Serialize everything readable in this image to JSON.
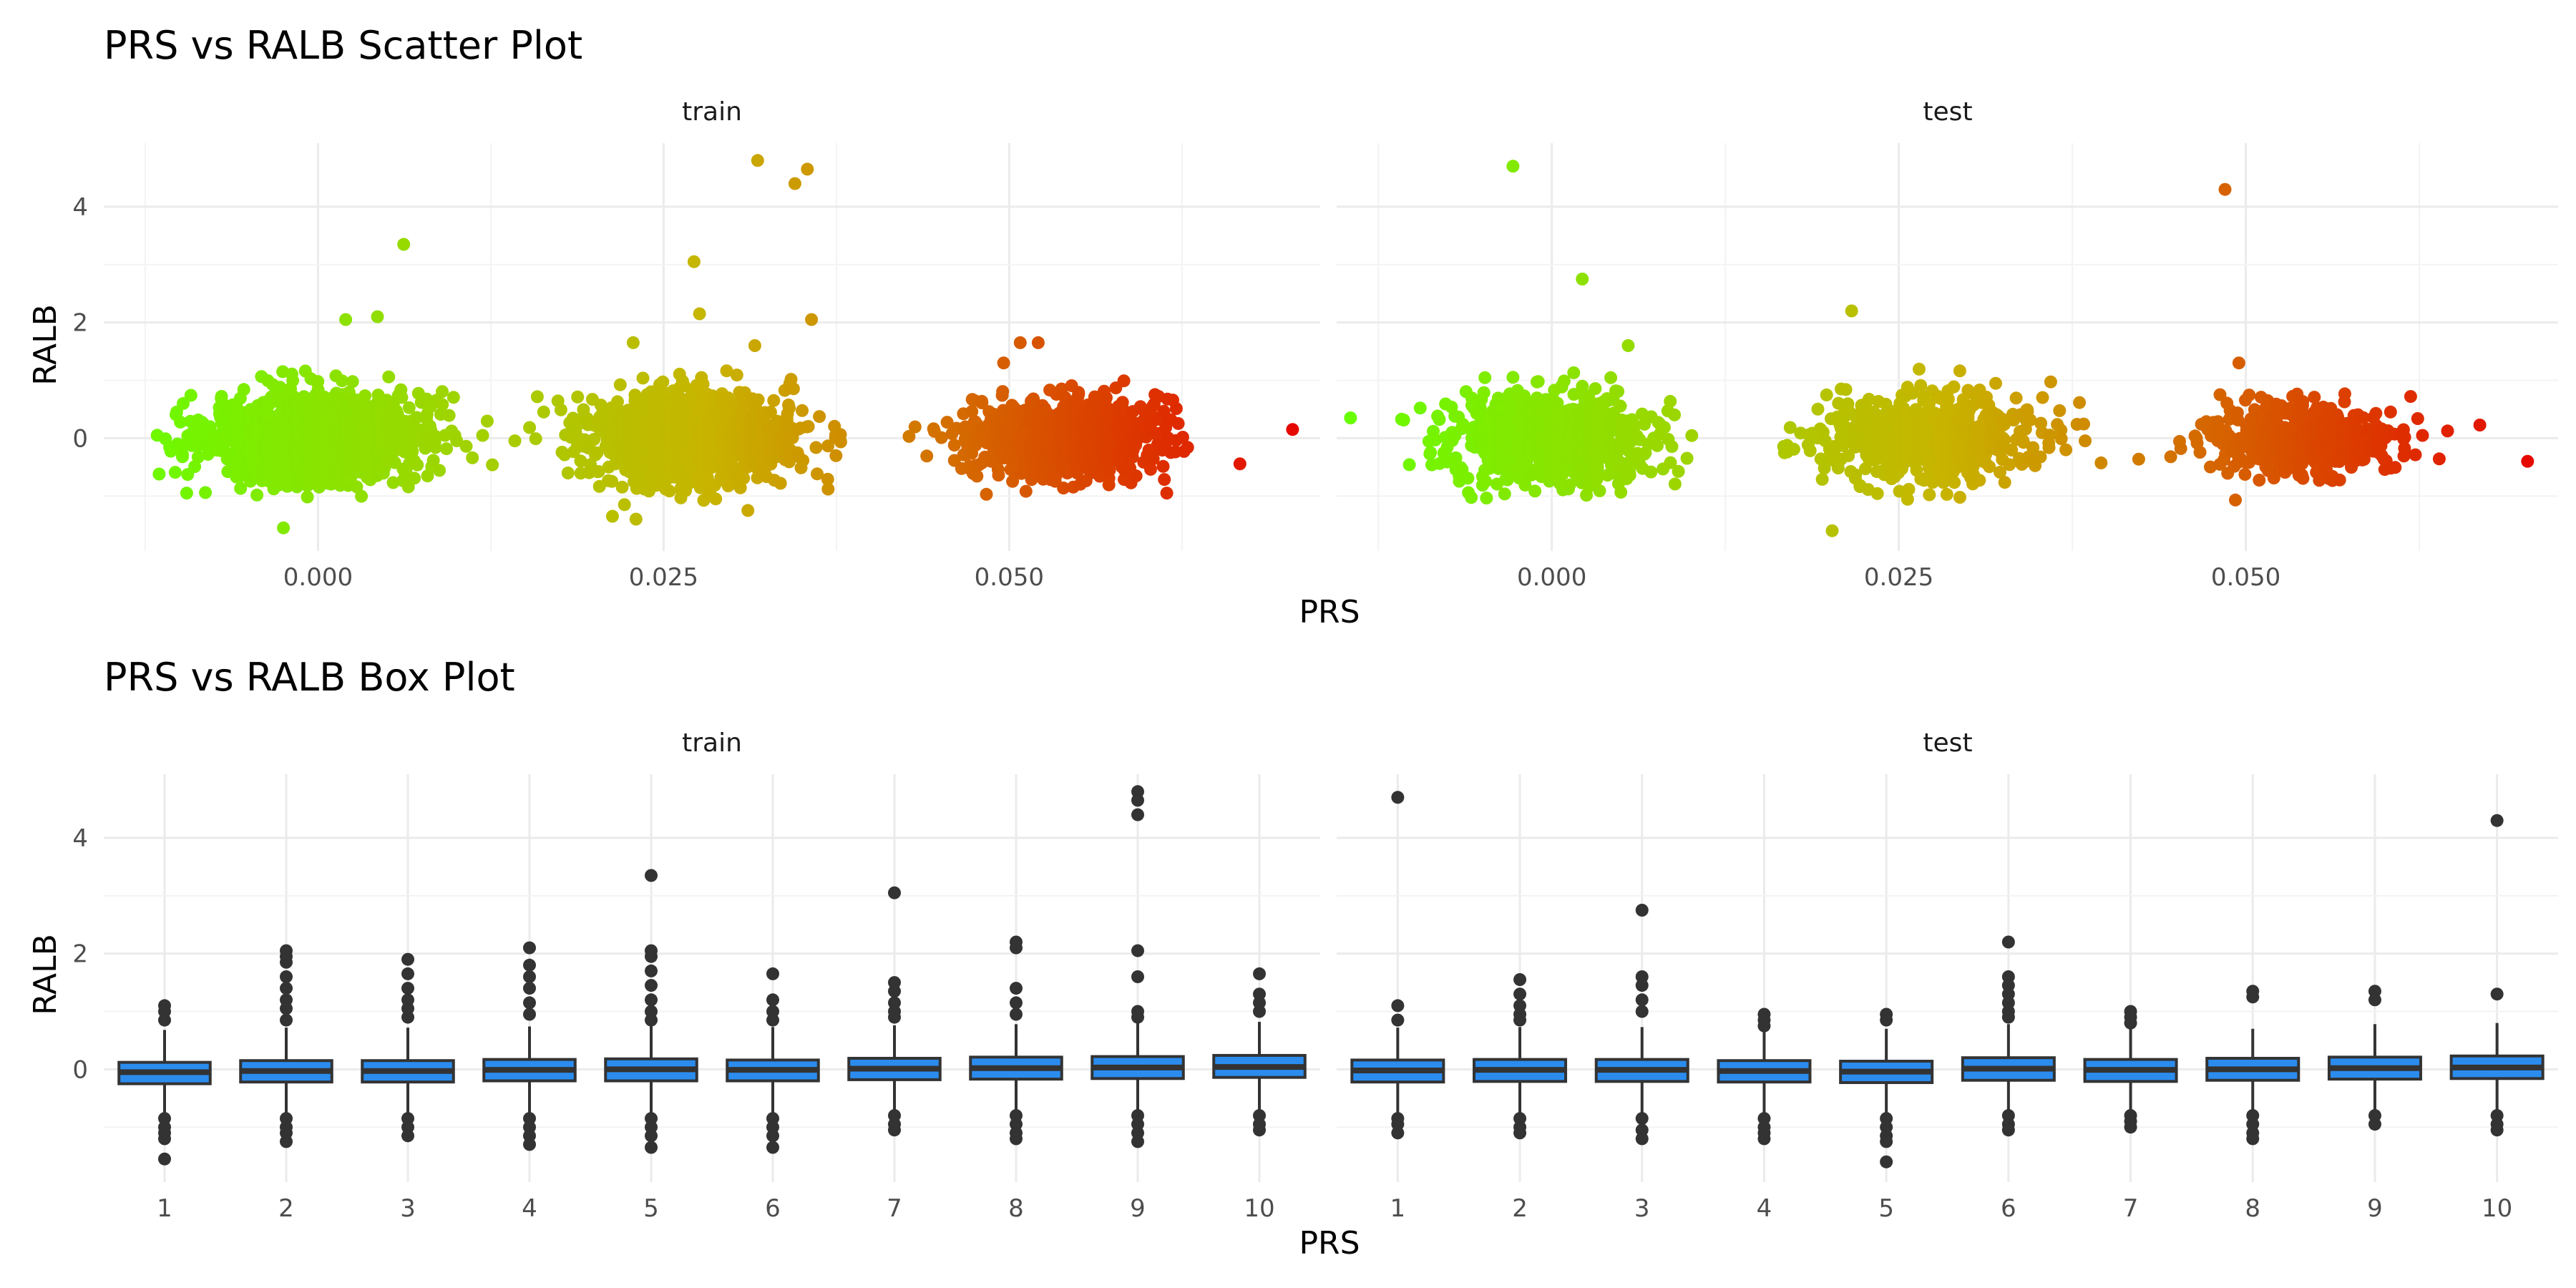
{
  "chart_data": [
    {
      "type": "scatter",
      "title": "PRS vs RALB Scatter Plot",
      "xlabel": "PRS",
      "ylabel": "RALB",
      "xlim": [
        -0.0155,
        0.0725
      ],
      "ylim": [
        -1.95,
        5.1
      ],
      "x_ticks": [
        0.0,
        0.025,
        0.05
      ],
      "x_tick_labels": [
        "0.000",
        "0.025",
        "0.050"
      ],
      "y_ticks": [
        0,
        2,
        4
      ],
      "y_tick_labels": [
        "0",
        "2",
        "4"
      ],
      "grid": true,
      "legend": "none",
      "color_scale": {
        "low": "#66ff00",
        "mid": "#c8b400",
        "high": "#e60000"
      },
      "panels": [
        {
          "strip": "train",
          "clusters": [
            {
              "x_center": 0.0,
              "x_sd": 0.0038,
              "y_sd": 0.38,
              "n": 1400
            },
            {
              "x_center": 0.027,
              "x_sd": 0.0038,
              "y_sd": 0.38,
              "n": 1100
            },
            {
              "x_center": 0.054,
              "x_sd": 0.0034,
              "y_sd": 0.33,
              "n": 900
            }
          ],
          "outliers": [
            {
              "x": 0.0318,
              "y": 4.8
            },
            {
              "x": 0.0354,
              "y": 4.65
            },
            {
              "x": 0.0345,
              "y": 4.4
            },
            {
              "x": 0.0062,
              "y": 3.35
            },
            {
              "x": 0.0272,
              "y": 3.05
            },
            {
              "x": 0.0276,
              "y": 2.15
            },
            {
              "x": 0.0357,
              "y": 2.05
            },
            {
              "x": 0.0043,
              "y": 2.1
            },
            {
              "x": 0.002,
              "y": 2.05
            },
            {
              "x": 0.0228,
              "y": 1.65
            },
            {
              "x": 0.0316,
              "y": 1.6
            },
            {
              "x": 0.0496,
              "y": 1.3
            },
            {
              "x": 0.0521,
              "y": 1.65
            },
            {
              "x": 0.0508,
              "y": 1.65
            },
            {
              "x": 0.0705,
              "y": 0.15
            },
            {
              "x": 0.0614,
              "y": -0.95
            },
            {
              "x": -0.0095,
              "y": -0.95
            },
            {
              "x": -0.0025,
              "y": -1.55
            },
            {
              "x": 0.0213,
              "y": -1.35
            },
            {
              "x": 0.023,
              "y": -1.4
            },
            {
              "x": 0.0311,
              "y": -1.25
            }
          ]
        },
        {
          "strip": "test",
          "clusters": [
            {
              "x_center": 0.0,
              "x_sd": 0.0038,
              "y_sd": 0.38,
              "n": 700
            },
            {
              "x_center": 0.027,
              "x_sd": 0.0038,
              "y_sd": 0.36,
              "n": 650
            },
            {
              "x_center": 0.054,
              "x_sd": 0.0034,
              "y_sd": 0.3,
              "n": 520
            }
          ],
          "outliers": [
            {
              "x": -0.0028,
              "y": 4.7
            },
            {
              "x": 0.0485,
              "y": 4.3
            },
            {
              "x": 0.0022,
              "y": 2.75
            },
            {
              "x": 0.0216,
              "y": 2.2
            },
            {
              "x": 0.0495,
              "y": 1.3
            },
            {
              "x": 0.0703,
              "y": -0.4
            },
            {
              "x": 0.0202,
              "y": -1.6
            },
            {
              "x": -0.0145,
              "y": 0.35
            },
            {
              "x": 0.0055,
              "y": 1.6
            }
          ]
        }
      ]
    },
    {
      "type": "box",
      "title": "PRS vs RALB Box Plot",
      "xlabel": "PRS",
      "ylabel": "RALB",
      "categories": [
        "1",
        "2",
        "3",
        "4",
        "5",
        "6",
        "7",
        "8",
        "9",
        "10"
      ],
      "ylim": [
        -1.95,
        5.1
      ],
      "y_ticks": [
        0,
        2,
        4
      ],
      "y_tick_labels": [
        "0",
        "2",
        "4"
      ],
      "grid": true,
      "box_fill": "#2b8cee",
      "box_stroke": "#333333",
      "panels": [
        {
          "strip": "train",
          "boxes": [
            {
              "q1": -0.25,
              "median": -0.05,
              "q3": 0.12,
              "whisker_low": -0.8,
              "whisker_high": 0.68,
              "outliers": [
                1.1,
                1.0,
                0.85,
                -0.85,
                -1.0,
                -1.1,
                -1.2,
                -1.55
              ]
            },
            {
              "q1": -0.22,
              "median": -0.03,
              "q3": 0.15,
              "whisker_low": -0.78,
              "whisker_high": 0.72,
              "outliers": [
                2.05,
                1.95,
                1.85,
                1.6,
                1.4,
                1.2,
                1.05,
                0.85,
                -0.85,
                -1.0,
                -1.1,
                -1.25
              ]
            },
            {
              "q1": -0.22,
              "median": -0.03,
              "q3": 0.15,
              "whisker_low": -0.78,
              "whisker_high": 0.72,
              "outliers": [
                1.9,
                1.65,
                1.4,
                1.2,
                1.05,
                0.9,
                -0.85,
                -1.0,
                -1.15
              ]
            },
            {
              "q1": -0.2,
              "median": -0.01,
              "q3": 0.17,
              "whisker_low": -0.76,
              "whisker_high": 0.74,
              "outliers": [
                2.1,
                1.8,
                1.6,
                1.4,
                1.15,
                0.95,
                -0.85,
                -1.0,
                -1.15,
                -1.3
              ]
            },
            {
              "q1": -0.2,
              "median": 0.0,
              "q3": 0.18,
              "whisker_low": -0.76,
              "whisker_high": 0.75,
              "outliers": [
                3.35,
                2.05,
                1.95,
                1.7,
                1.45,
                1.2,
                1.0,
                0.85,
                -0.85,
                -1.0,
                -1.15,
                -1.35
              ]
            },
            {
              "q1": -0.2,
              "median": -0.01,
              "q3": 0.16,
              "whisker_low": -0.76,
              "whisker_high": 0.73,
              "outliers": [
                1.65,
                1.2,
                1.0,
                0.85,
                -0.85,
                -1.0,
                -1.15,
                -1.35
              ]
            },
            {
              "q1": -0.18,
              "median": 0.01,
              "q3": 0.19,
              "whisker_low": -0.74,
              "whisker_high": 0.76,
              "outliers": [
                3.05,
                1.5,
                1.35,
                1.15,
                1.0,
                0.9,
                -0.8,
                -0.95,
                -1.05
              ]
            },
            {
              "q1": -0.17,
              "median": 0.02,
              "q3": 0.21,
              "whisker_low": -0.73,
              "whisker_high": 0.78,
              "outliers": [
                2.2,
                2.1,
                1.4,
                1.15,
                0.95,
                -0.8,
                -0.95,
                -1.1,
                -1.2
              ]
            },
            {
              "q1": -0.16,
              "median": 0.03,
              "q3": 0.22,
              "whisker_low": -0.72,
              "whisker_high": 0.8,
              "outliers": [
                4.8,
                4.65,
                4.4,
                2.05,
                1.6,
                1.0,
                0.9,
                -0.8,
                -0.95,
                -1.1,
                -1.25
              ]
            },
            {
              "q1": -0.14,
              "median": 0.04,
              "q3": 0.24,
              "whisker_low": -0.7,
              "whisker_high": 0.82,
              "outliers": [
                1.65,
                1.3,
                1.15,
                1.0,
                -0.8,
                -0.95,
                -1.05
              ]
            }
          ]
        },
        {
          "strip": "test",
          "boxes": [
            {
              "q1": -0.22,
              "median": -0.02,
              "q3": 0.16,
              "whisker_low": -0.75,
              "whisker_high": 0.72,
              "outliers": [
                4.7,
                1.1,
                0.85,
                -0.85,
                -0.95,
                -1.1
              ]
            },
            {
              "q1": -0.21,
              "median": -0.01,
              "q3": 0.17,
              "whisker_low": -0.75,
              "whisker_high": 0.73,
              "outliers": [
                1.55,
                1.3,
                1.1,
                0.95,
                0.85,
                -0.85,
                -1.0,
                -1.1
              ]
            },
            {
              "q1": -0.21,
              "median": -0.01,
              "q3": 0.17,
              "whisker_low": -0.75,
              "whisker_high": 0.73,
              "outliers": [
                2.75,
                1.6,
                1.45,
                1.2,
                1.0,
                -0.85,
                -1.05,
                -1.2
              ]
            },
            {
              "q1": -0.22,
              "median": -0.03,
              "q3": 0.15,
              "whisker_low": -0.76,
              "whisker_high": 0.7,
              "outliers": [
                0.95,
                0.85,
                0.75,
                -0.85,
                -1.0,
                -1.1,
                -1.2
              ]
            },
            {
              "q1": -0.23,
              "median": -0.04,
              "q3": 0.14,
              "whisker_low": -0.77,
              "whisker_high": 0.7,
              "outliers": [
                0.95,
                0.85,
                -0.85,
                -1.0,
                -1.15,
                -1.25,
                -1.6
              ]
            },
            {
              "q1": -0.19,
              "median": 0.01,
              "q3": 0.2,
              "whisker_low": -0.74,
              "whisker_high": 0.78,
              "outliers": [
                2.2,
                1.6,
                1.45,
                1.3,
                1.15,
                1.0,
                0.9,
                -0.8,
                -0.95,
                -1.05
              ]
            },
            {
              "q1": -0.21,
              "median": -0.01,
              "q3": 0.17,
              "whisker_low": -0.75,
              "whisker_high": 0.73,
              "outliers": [
                1.0,
                0.9,
                0.8,
                -0.8,
                -0.9,
                -1.0
              ]
            },
            {
              "q1": -0.19,
              "median": 0.0,
              "q3": 0.19,
              "whisker_low": -0.75,
              "whisker_high": 0.7,
              "outliers": [
                1.35,
                1.25,
                -0.8,
                -0.95,
                -1.1,
                -1.2
              ]
            },
            {
              "q1": -0.17,
              "median": 0.02,
              "q3": 0.21,
              "whisker_low": -0.74,
              "whisker_high": 0.78,
              "outliers": [
                1.35,
                1.2,
                -0.8,
                -0.95
              ]
            },
            {
              "q1": -0.16,
              "median": 0.03,
              "q3": 0.23,
              "whisker_low": -0.72,
              "whisker_high": 0.8,
              "outliers": [
                4.3,
                1.3,
                -0.8,
                -0.95,
                -1.05
              ]
            }
          ]
        }
      ]
    }
  ]
}
